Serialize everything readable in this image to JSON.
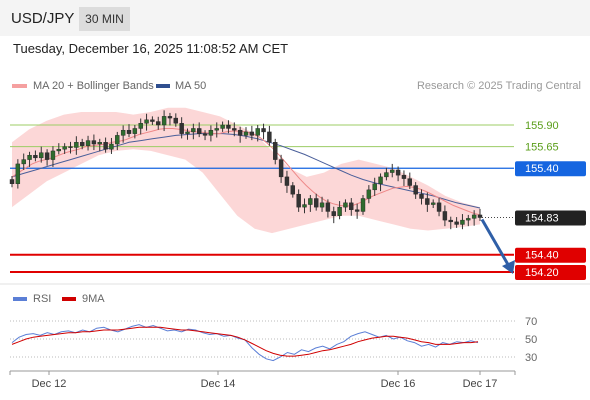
{
  "header": {
    "pair": "USD/JPY",
    "timeframe": "30 MIN",
    "timestamp": "Tuesday, December 16, 2025 11:08:52 AM CET"
  },
  "legend": {
    "ma20": "MA 20 + Bollinger Bands",
    "ma50": "MA 50",
    "credit": "Research © 2025 Trading Central"
  },
  "rsi_legend": {
    "rsi": "RSI",
    "ma9": "9MA"
  },
  "colors": {
    "bollinger": "#fcd0d0",
    "ma20": "#e88",
    "ma50": "#4a5f9a",
    "candle": "#2e6b2e",
    "resistance": "#9ccc65",
    "support": "#e00000",
    "pivot": "#1565e0",
    "arrow": "#2f5fa7",
    "rsi": "#5b7fd6",
    "rsi_ma": "#d00000"
  },
  "chart_data": [
    {
      "type": "candlestick",
      "title": "USD/JPY 30 MIN",
      "x_ticks": [
        "Dec 12",
        "Dec 14",
        "Dec 16",
        "Dec 17"
      ],
      "levels": [
        {
          "label": "155.90",
          "value": 155.9,
          "kind": "resistance"
        },
        {
          "label": "155.65",
          "value": 155.65,
          "kind": "resistance"
        },
        {
          "label": "155.40",
          "value": 155.4,
          "kind": "pivot"
        },
        {
          "label": "154.83",
          "value": 154.83,
          "kind": "last"
        },
        {
          "label": "154.40",
          "value": 154.4,
          "kind": "support"
        },
        {
          "label": "154.20",
          "value": 154.2,
          "kind": "support"
        }
      ],
      "close": [
        155.22,
        155.45,
        155.5,
        155.55,
        155.52,
        155.58,
        155.5,
        155.6,
        155.62,
        155.65,
        155.64,
        155.7,
        155.66,
        155.72,
        155.68,
        155.7,
        155.62,
        155.68,
        155.78,
        155.84,
        155.8,
        155.86,
        155.92,
        155.96,
        155.94,
        155.9,
        156.0,
        155.98,
        155.92,
        155.8,
        155.82,
        155.86,
        155.8,
        155.78,
        155.84,
        155.86,
        155.9,
        155.86,
        155.84,
        155.78,
        155.82,
        155.78,
        155.86,
        155.82,
        155.7,
        155.5,
        155.3,
        155.2,
        155.1,
        154.95,
        154.98,
        155.05,
        154.95,
        155.0,
        154.9,
        154.85,
        154.95,
        155.0,
        154.92,
        154.9,
        155.05,
        155.15,
        155.22,
        155.3,
        155.35,
        155.38,
        155.32,
        155.28,
        155.2,
        155.1,
        155.05,
        154.98,
        155.0,
        154.9,
        154.8,
        154.78,
        154.75,
        154.8,
        154.82,
        154.86,
        154.83
      ],
      "ma20": [
        155.3,
        155.35,
        155.4,
        155.45,
        155.48,
        155.5,
        155.52,
        155.55,
        155.58,
        155.6,
        155.62,
        155.65,
        155.66,
        155.67,
        155.68,
        155.7,
        155.71,
        155.73,
        155.76,
        155.79,
        155.81,
        155.83,
        155.85,
        155.86,
        155.86,
        155.85,
        155.84,
        155.82,
        155.82,
        155.81,
        155.8,
        155.8,
        155.82,
        155.83,
        155.83,
        155.82,
        155.8,
        155.76,
        155.7,
        155.63,
        155.55,
        155.46,
        155.37,
        155.28,
        155.2,
        155.13,
        155.07,
        155.02,
        154.99,
        154.97,
        154.96,
        154.97,
        155.0,
        155.04,
        155.08,
        155.11,
        155.14,
        155.17,
        155.18,
        155.19,
        155.18,
        155.16,
        155.13,
        155.09,
        155.05,
        155.01,
        154.97,
        154.94,
        154.91,
        154.88,
        154.86
      ],
      "ma50": [
        155.3,
        155.34,
        155.38,
        155.42,
        155.46,
        155.5,
        155.54,
        155.58,
        155.62,
        155.66,
        155.7,
        155.72,
        155.74,
        155.76,
        155.78,
        155.79,
        155.8,
        155.8,
        155.8,
        155.79,
        155.77,
        155.74,
        155.7,
        155.66,
        155.61,
        155.56,
        155.5,
        155.44,
        155.38,
        155.32,
        155.27,
        155.23,
        155.2,
        155.17,
        155.14,
        155.11,
        155.08,
        155.04,
        155.0,
        154.97,
        154.94
      ],
      "bb_upper": [
        155.7,
        155.85,
        155.95,
        156.02,
        156.05,
        156.05,
        156.05,
        156.02,
        156.05,
        156.1,
        156.1,
        156.05,
        156.0,
        155.9,
        155.8,
        155.6,
        155.4,
        155.3,
        155.35,
        155.45,
        155.5,
        155.45,
        155.4,
        155.3,
        155.2,
        155.08,
        155.0,
        154.95
      ],
      "bb_lower": [
        154.95,
        155.1,
        155.25,
        155.35,
        155.45,
        155.55,
        155.6,
        155.62,
        155.6,
        155.55,
        155.5,
        155.35,
        155.1,
        154.85,
        154.7,
        154.65,
        154.7,
        154.75,
        154.8,
        154.85,
        154.85,
        154.8,
        154.75,
        154.7,
        154.68,
        154.7,
        154.72,
        154.75
      ],
      "forecast": {
        "from": 154.83,
        "to": 154.2
      }
    },
    {
      "type": "line",
      "title": "RSI",
      "y_ticks": [
        "70",
        "50",
        "30"
      ],
      "ylim": [
        20,
        80
      ],
      "series": [
        {
          "name": "RSI",
          "values": [
            46,
            52,
            55,
            56,
            54,
            57,
            55,
            58,
            59,
            57,
            60,
            58,
            62,
            63,
            60,
            58,
            61,
            64,
            66,
            63,
            65,
            62,
            59,
            60,
            58,
            61,
            60,
            57,
            55,
            56,
            53,
            54,
            51,
            49,
            40,
            33,
            28,
            26,
            30,
            35,
            33,
            38,
            36,
            40,
            42,
            39,
            44,
            47,
            53,
            56,
            58,
            55,
            52,
            54,
            50,
            52,
            48,
            46,
            42,
            44,
            41,
            46,
            44,
            47,
            46,
            48,
            46
          ]
        },
        {
          "name": "9MA",
          "values": [
            44,
            47,
            50,
            52,
            53,
            54,
            55,
            56,
            57,
            57,
            58,
            58,
            59,
            60,
            60,
            60,
            61,
            62,
            63,
            63,
            63,
            63,
            62,
            61,
            60,
            60,
            59,
            58,
            57,
            56,
            55,
            54,
            52,
            49,
            45,
            41,
            37,
            34,
            32,
            31,
            31,
            32,
            33,
            35,
            37,
            38,
            40,
            42,
            44,
            47,
            49,
            51,
            52,
            53,
            53,
            52,
            51,
            49,
            47,
            46,
            44,
            44,
            44,
            45,
            46,
            46,
            47
          ]
        }
      ]
    }
  ]
}
